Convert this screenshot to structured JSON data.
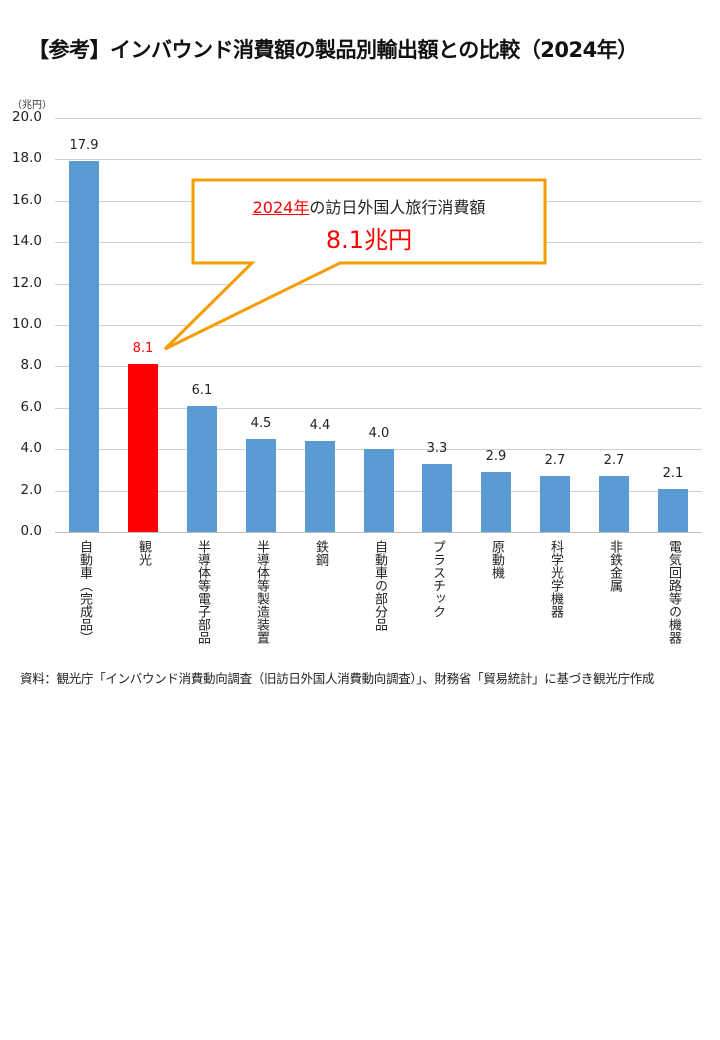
{
  "title": "【参考】インバウンド消費額の製品別輸出額との比較（2024年）",
  "unit_label": "（兆円）",
  "callout": {
    "year_text": "2024年",
    "line1_rest": "の訪日外国人旅行消費額",
    "value_text": "8.1兆円",
    "border_color": "#f59c00"
  },
  "source_note": "資料：観光庁「インバウンド消費動向調査（旧訪日外国人消費動向調査）」、財務省「貿易統計」に基づき観光庁作成",
  "colors": {
    "bar_default": "#5b9bd5",
    "bar_highlight": "#ff0000",
    "highlight_label": "#ff0000",
    "gridline": "#d0d0d0"
  },
  "chart_data": {
    "type": "bar",
    "title": "【参考】インバウンド消費額の製品別輸出額との比較（2024年）",
    "xlabel": "",
    "ylabel": "（兆円）",
    "ylim": [
      0,
      20
    ],
    "yticks": [
      "0.0",
      "2.0",
      "4.0",
      "6.0",
      "8.0",
      "10.0",
      "12.0",
      "14.0",
      "16.0",
      "18.0",
      "20.0"
    ],
    "grid": true,
    "legend": null,
    "categories": [
      "自動車（完成品）",
      "観光",
      "半導体等電子部品",
      "半導体等製造装置",
      "鉄鋼",
      "自動車の部分品",
      "プラスチック",
      "原動機",
      "科学光学機器",
      "非鉄金属",
      "電気回路等の機器"
    ],
    "values": [
      17.9,
      8.1,
      6.1,
      4.5,
      4.4,
      4.0,
      3.3,
      2.9,
      2.7,
      2.7,
      2.1
    ],
    "value_labels": [
      "17.9",
      "8.1",
      "6.1",
      "4.5",
      "4.4",
      "4.0",
      "3.3",
      "2.9",
      "2.7",
      "2.7",
      "2.1"
    ],
    "highlight_index": 1,
    "annotations": [
      "2024年の訪日外国人旅行消費額 8.1兆円"
    ]
  }
}
